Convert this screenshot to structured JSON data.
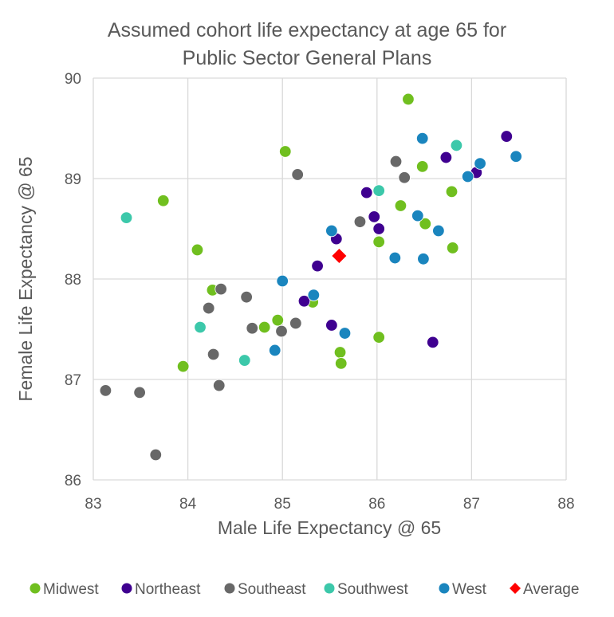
{
  "chart_data": {
    "type": "scatter",
    "title": [
      "Assumed cohort life expectancy at age 65 for",
      "Public Sector General Plans"
    ],
    "xlabel": "Male Life Expectancy @ 65",
    "ylabel": "Female Life Expectancy @ 65",
    "xlim": [
      83,
      88
    ],
    "ylim": [
      86,
      90
    ],
    "xticks": [
      "83",
      "84",
      "85",
      "86",
      "87",
      "88"
    ],
    "yticks": [
      "86",
      "87",
      "88",
      "89",
      "90"
    ],
    "grid": true,
    "legend_position": "bottom",
    "series": [
      {
        "name": "Midwest",
        "color": "#70BF1F",
        "marker": "circle",
        "points": [
          [
            85.03,
            89.27
          ],
          [
            86.33,
            89.79
          ],
          [
            86.48,
            89.12
          ],
          [
            83.74,
            88.78
          ],
          [
            86.25,
            88.73
          ],
          [
            86.79,
            88.87
          ],
          [
            84.1,
            88.29
          ],
          [
            86.02,
            88.37
          ],
          [
            86.51,
            88.55
          ],
          [
            86.8,
            88.31
          ],
          [
            84.26,
            87.89
          ],
          [
            85.32,
            87.77
          ],
          [
            84.95,
            87.59
          ],
          [
            84.81,
            87.52
          ],
          [
            86.02,
            87.42
          ],
          [
            85.61,
            87.27
          ],
          [
            85.62,
            87.16
          ],
          [
            83.95,
            87.13
          ]
        ]
      },
      {
        "name": "Northeast",
        "color": "#3F0090",
        "marker": "circle",
        "points": [
          [
            87.37,
            89.42
          ],
          [
            86.73,
            89.21
          ],
          [
            87.05,
            89.06
          ],
          [
            85.89,
            88.86
          ],
          [
            85.97,
            88.62
          ],
          [
            86.02,
            88.5
          ],
          [
            85.57,
            88.4
          ],
          [
            85.37,
            88.13
          ],
          [
            85.23,
            87.78
          ],
          [
            85.52,
            87.54
          ],
          [
            86.59,
            87.37
          ]
        ]
      },
      {
        "name": "Southeast",
        "color": "#686868",
        "marker": "circle",
        "points": [
          [
            85.16,
            89.04
          ],
          [
            86.2,
            89.17
          ],
          [
            86.29,
            89.01
          ],
          [
            85.82,
            88.57
          ],
          [
            84.35,
            87.9
          ],
          [
            84.62,
            87.82
          ],
          [
            84.22,
            87.71
          ],
          [
            84.68,
            87.51
          ],
          [
            85.14,
            87.56
          ],
          [
            84.99,
            87.48
          ],
          [
            84.27,
            87.25
          ],
          [
            84.33,
            86.94
          ],
          [
            83.13,
            86.89
          ],
          [
            83.49,
            86.87
          ],
          [
            83.66,
            86.25
          ]
        ]
      },
      {
        "name": "Southwest",
        "color": "#3CC8AA",
        "marker": "circle",
        "points": [
          [
            83.35,
            88.61
          ],
          [
            86.84,
            89.33
          ],
          [
            86.02,
            88.88
          ],
          [
            84.13,
            87.52
          ],
          [
            84.6,
            87.19
          ]
        ]
      },
      {
        "name": "West",
        "color": "#1A85BE",
        "marker": "circle",
        "points": [
          [
            86.48,
            89.4
          ],
          [
            87.47,
            89.22
          ],
          [
            87.09,
            89.15
          ],
          [
            86.96,
            89.02
          ],
          [
            86.43,
            88.63
          ],
          [
            86.65,
            88.48
          ],
          [
            85.52,
            88.48
          ],
          [
            86.19,
            88.21
          ],
          [
            86.49,
            88.2
          ],
          [
            85.0,
            87.98
          ],
          [
            85.33,
            87.84
          ],
          [
            85.66,
            87.46
          ],
          [
            84.92,
            87.29
          ]
        ]
      },
      {
        "name": "Average",
        "color": "#FF0000",
        "marker": "diamond",
        "points": [
          [
            85.6,
            88.23
          ]
        ]
      }
    ]
  }
}
